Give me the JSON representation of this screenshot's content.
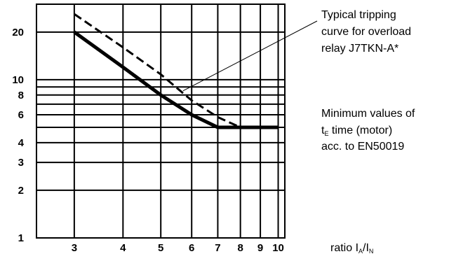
{
  "chart_data": {
    "type": "line",
    "title": "",
    "xlabel": {
      "prefix": "ratio I",
      "sub1": "A",
      "sep": "/I",
      "sub2": "N"
    },
    "x_scale": "log",
    "y_scale": "log",
    "xlim": [
      2.4,
      10.4
    ],
    "ylim": [
      1,
      30
    ],
    "x_ticks": [
      3,
      4,
      5,
      6,
      7,
      8,
      9,
      10
    ],
    "y_ticks": [
      1,
      2,
      3,
      4,
      6,
      8,
      10,
      20
    ],
    "grid": true,
    "series": [
      {
        "name": "Typical tripping curve for overload relay J7TKN-A*",
        "style": "dashed",
        "points": [
          [
            3,
            26
          ],
          [
            4,
            16
          ],
          [
            5,
            10.8
          ],
          [
            6,
            7.4
          ],
          [
            7,
            5.8
          ],
          [
            8,
            5
          ]
        ]
      },
      {
        "name": "Minimum values of tE time (motor) acc. to EN50019",
        "style": "solid",
        "points": [
          [
            3,
            20
          ],
          [
            4,
            12
          ],
          [
            5,
            8
          ],
          [
            6,
            6
          ],
          [
            7,
            5
          ],
          [
            10,
            5
          ]
        ]
      }
    ],
    "annotations": [
      {
        "lines": [
          "Typical tripping",
          "curve for overload",
          "relay J7TKN-A*"
        ]
      },
      {
        "lines": [
          "Minimum values of"
        ],
        "line2": {
          "t": "t",
          "sub": "E",
          "rest": " time (motor)"
        },
        "line3": "acc. to EN50019"
      }
    ],
    "colors": {
      "ink": "#000000",
      "background": "#ffffff"
    }
  }
}
